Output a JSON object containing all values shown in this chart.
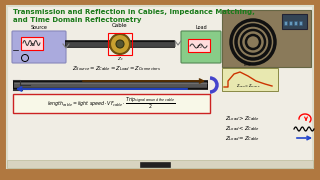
{
  "title_line1": "Transmission and Reflection in Cables, Impedance Matching,",
  "title_line2": "and Time Domain Reflectometry",
  "title_color": "#1a7a1a",
  "bg_color": "#c8b89a",
  "whiteboard_color": "#f0ede4",
  "border_color": "#b07840",
  "source_label": "Source",
  "cable_label": "Cable",
  "load_label": "Load",
  "source_bg": "#aaaadd",
  "load_bg": "#88cc88",
  "photo_bg": "#8a7a5a",
  "tdr_bg": "#e8e8b0",
  "formula_bg": "#f8f8e8"
}
